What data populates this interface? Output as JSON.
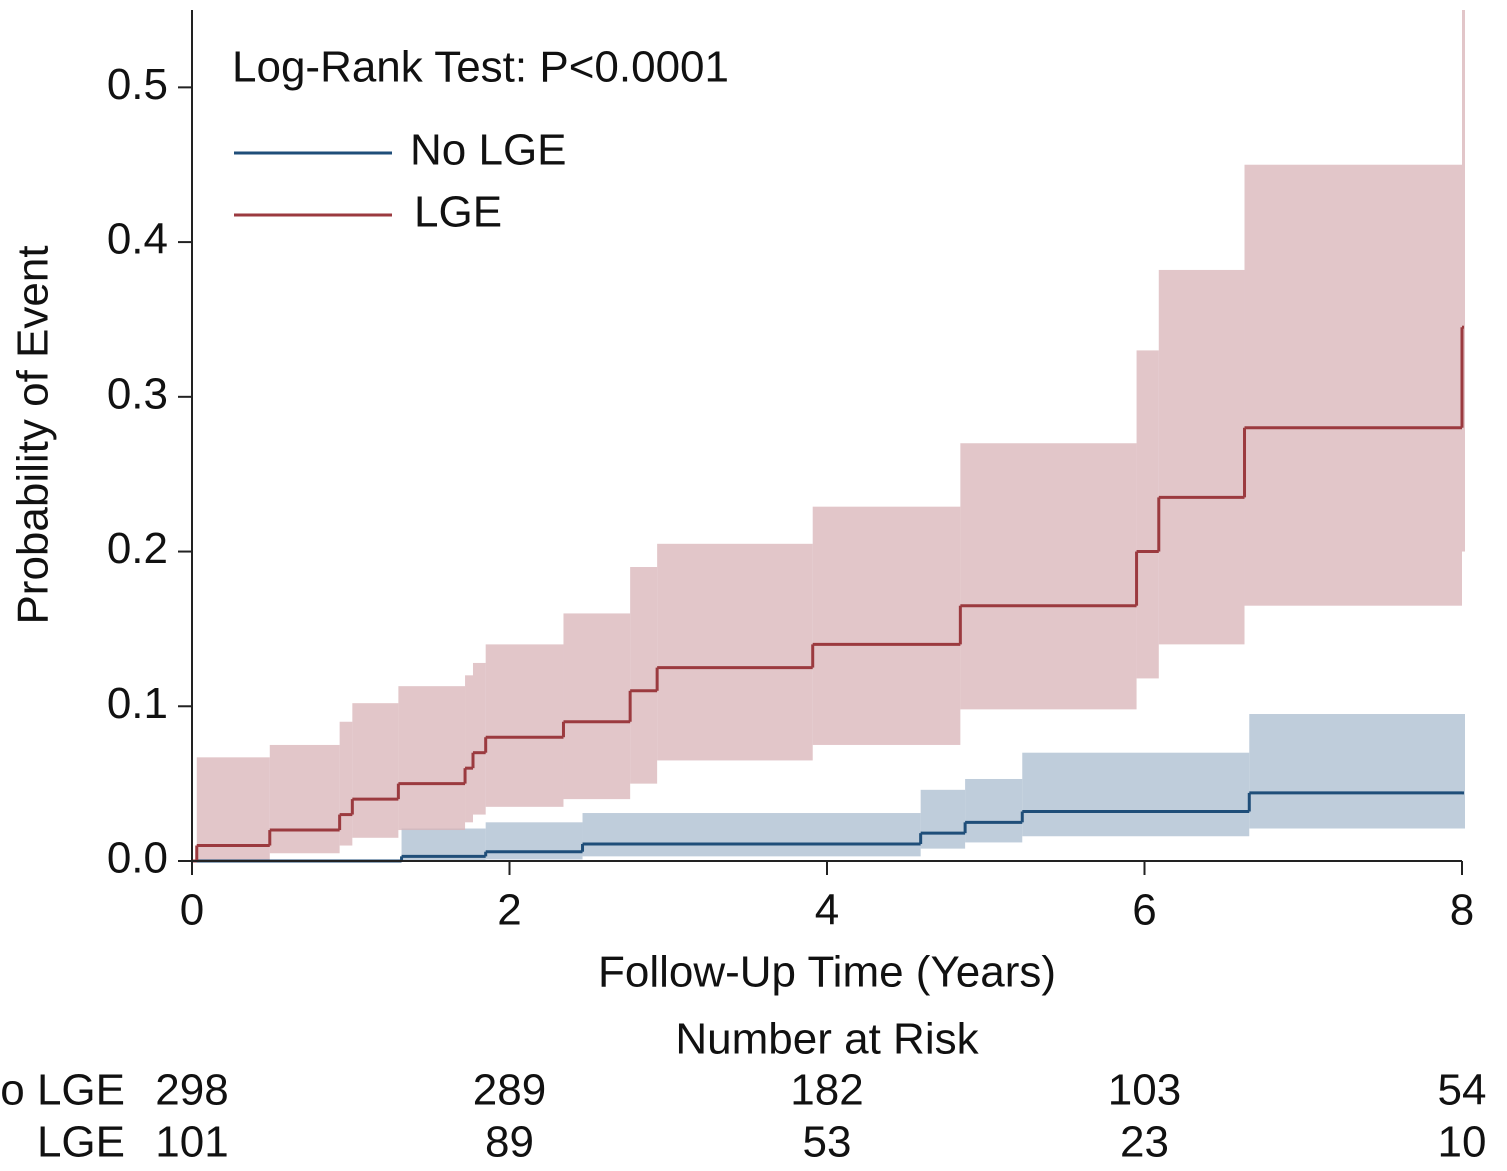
{
  "chart_data": {
    "type": "step",
    "annotation": "Log-Rank Test: P<0.0001",
    "x_label": "Follow-Up Time (Years)",
    "y_label": "Probability of Event",
    "xlim": [
      0,
      8
    ],
    "xticks": [
      0,
      2,
      4,
      6,
      8
    ],
    "ylim": [
      0,
      0.55
    ],
    "yticks": [
      {
        "value": 0,
        "label": "0.0"
      },
      0.1,
      0.2,
      0.3,
      0.4,
      0.5
    ],
    "legend": "upper left",
    "series": [
      {
        "name": "No LGE",
        "color": "#1f4e79",
        "band_color": "#a9bccf",
        "x": [
          0,
          1.32,
          1.85,
          2.46,
          4.59,
          4.87,
          5.23,
          6.66,
          8
        ],
        "values": [
          0,
          0.003,
          0.006,
          0.011,
          0.018,
          0.025,
          0.032,
          0.044,
          0.044
        ],
        "lower": [
          0,
          0,
          0.001,
          0.003,
          0.008,
          0.012,
          0.016,
          0.021,
          0.021
        ],
        "upper": [
          0,
          0.021,
          0.025,
          0.031,
          0.046,
          0.053,
          0.07,
          0.095,
          0.095
        ]
      },
      {
        "name": "LGE",
        "color": "#9b3a3f",
        "band_color": "#d8b3b7",
        "x": [
          0,
          0.03,
          0.49,
          0.93,
          1.01,
          1.3,
          1.72,
          1.77,
          1.85,
          2.34,
          2.76,
          2.93,
          3.91,
          4.84,
          5.95,
          6.09,
          6.63,
          8
        ],
        "values": [
          0,
          0.01,
          0.02,
          0.03,
          0.04,
          0.05,
          0.06,
          0.07,
          0.08,
          0.09,
          0.11,
          0.125,
          0.14,
          0.165,
          0.2,
          0.235,
          0.28,
          0.345
        ],
        "lower": [
          0,
          0,
          0.005,
          0.01,
          0.015,
          0.02,
          0.025,
          0.03,
          0.035,
          0.04,
          0.05,
          0.065,
          0.075,
          0.098,
          0.118,
          0.14,
          0.165,
          0.2
        ],
        "upper": [
          0,
          0.067,
          0.075,
          0.09,
          0.102,
          0.113,
          0.12,
          0.128,
          0.14,
          0.16,
          0.19,
          0.205,
          0.229,
          0.27,
          0.33,
          0.382,
          0.45,
          0.55
        ]
      }
    ],
    "risk_table": {
      "title": "Number at Risk",
      "rows": [
        {
          "label": "No LGE",
          "values": [
            298,
            289,
            182,
            103,
            54
          ]
        },
        {
          "label": "LGE",
          "values": [
            101,
            89,
            53,
            23,
            10
          ]
        }
      ]
    }
  }
}
